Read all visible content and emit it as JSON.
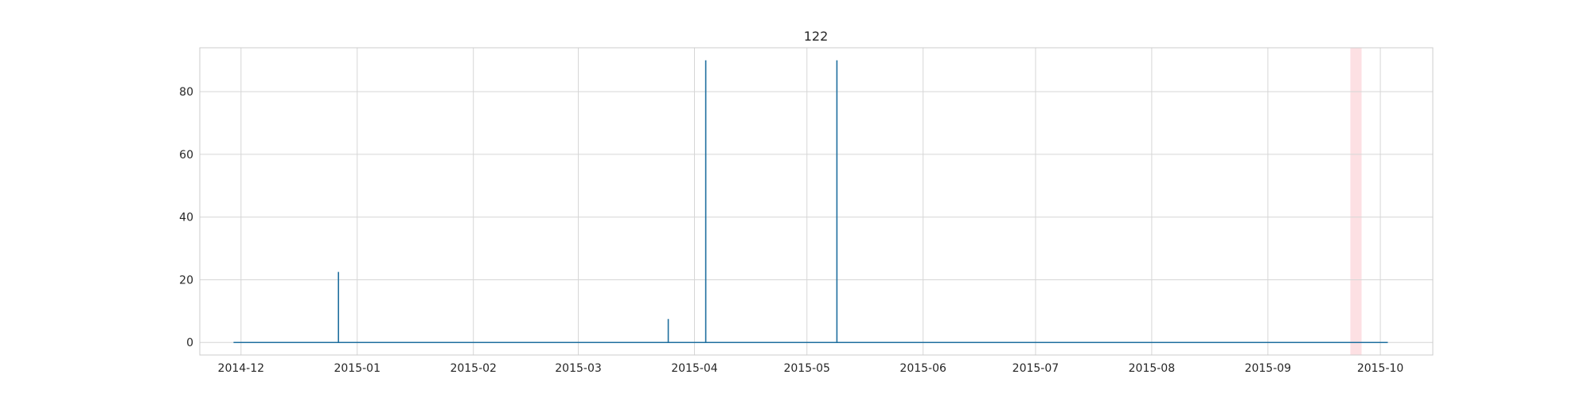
{
  "chart_data": {
    "type": "line",
    "title": "122",
    "xlabel": "",
    "ylabel": "",
    "grid": true,
    "x_range": [
      "2014-11-20",
      "2015-10-15"
    ],
    "ylim": [
      -4,
      94
    ],
    "x_ticks": [
      "2014-12",
      "2015-01",
      "2015-02",
      "2015-03",
      "2015-04",
      "2015-05",
      "2015-06",
      "2015-07",
      "2015-08",
      "2015-09",
      "2015-10"
    ],
    "y_ticks": [
      0,
      20,
      40,
      60,
      80
    ],
    "highlight": {
      "start": "2015-09-23",
      "end": "2015-09-26",
      "color": "#fde0e3"
    },
    "series": [
      {
        "color": "#1f6f9f",
        "points": [
          [
            "2014-11-29",
            0
          ],
          [
            "2014-12-27",
            0
          ],
          [
            "2014-12-27",
            22.5
          ],
          [
            "2014-12-27",
            0
          ],
          [
            "2015-03-25",
            0
          ],
          [
            "2015-03-25",
            7.5
          ],
          [
            "2015-03-25",
            0
          ],
          [
            "2015-04-04",
            0
          ],
          [
            "2015-04-04",
            90
          ],
          [
            "2015-04-04",
            0
          ],
          [
            "2015-05-09",
            0
          ],
          [
            "2015-05-09",
            90
          ],
          [
            "2015-05-09",
            0
          ],
          [
            "2015-10-03",
            0
          ]
        ]
      }
    ]
  }
}
